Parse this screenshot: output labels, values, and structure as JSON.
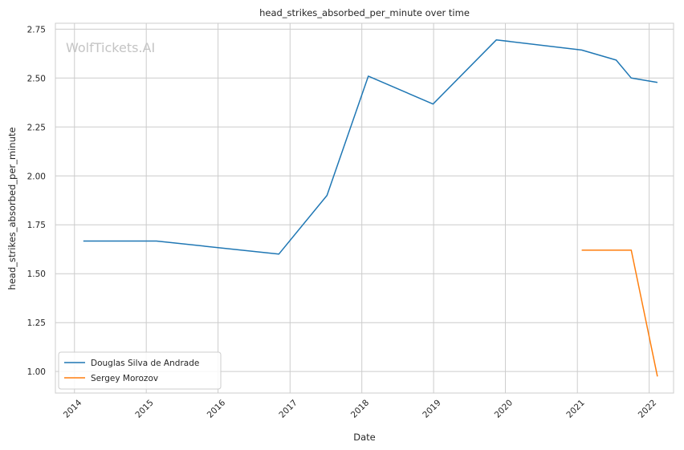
{
  "chart_data": {
    "type": "line",
    "title": "head_strikes_absorbed_per_minute over time",
    "xlabel": "Date",
    "ylabel": "head_strikes_absorbed_per_minute",
    "watermark": "WolfTickets.AI",
    "x_ticks": [
      "2014",
      "2015",
      "2016",
      "2017",
      "2018",
      "2019",
      "2020",
      "2021",
      "2022"
    ],
    "y_ticks": [
      "1.00",
      "1.25",
      "1.50",
      "1.75",
      "2.00",
      "2.25",
      "2.50",
      "2.75"
    ],
    "xlim": [
      "2013-09-26",
      "2022-05-05"
    ],
    "ylim": [
      0.89,
      2.78
    ],
    "grid": true,
    "legend_position": "lower-left",
    "series": [
      {
        "name": "Douglas Silva de Andrade",
        "color": "#1f77b4",
        "points": [
          {
            "x": "2014-02-15",
            "y": 1.667
          },
          {
            "x": "2015-02-22",
            "y": 1.667
          },
          {
            "x": "2016-11-05",
            "y": 1.6
          },
          {
            "x": "2017-07-08",
            "y": 1.9
          },
          {
            "x": "2018-02-03",
            "y": 2.51
          },
          {
            "x": "2018-12-29",
            "y": 2.367
          },
          {
            "x": "2019-11-16",
            "y": 2.695
          },
          {
            "x": "2021-01-23",
            "y": 2.643
          },
          {
            "x": "2021-07-17",
            "y": 2.592
          },
          {
            "x": "2021-10-02",
            "y": 2.5
          },
          {
            "x": "2022-02-12",
            "y": 2.478
          }
        ]
      },
      {
        "name": "Sergey Morozov",
        "color": "#ff7f0e",
        "points": [
          {
            "x": "2021-01-23",
            "y": 1.62
          },
          {
            "x": "2021-10-02",
            "y": 1.62
          },
          {
            "x": "2022-02-12",
            "y": 0.975
          }
        ]
      }
    ]
  }
}
